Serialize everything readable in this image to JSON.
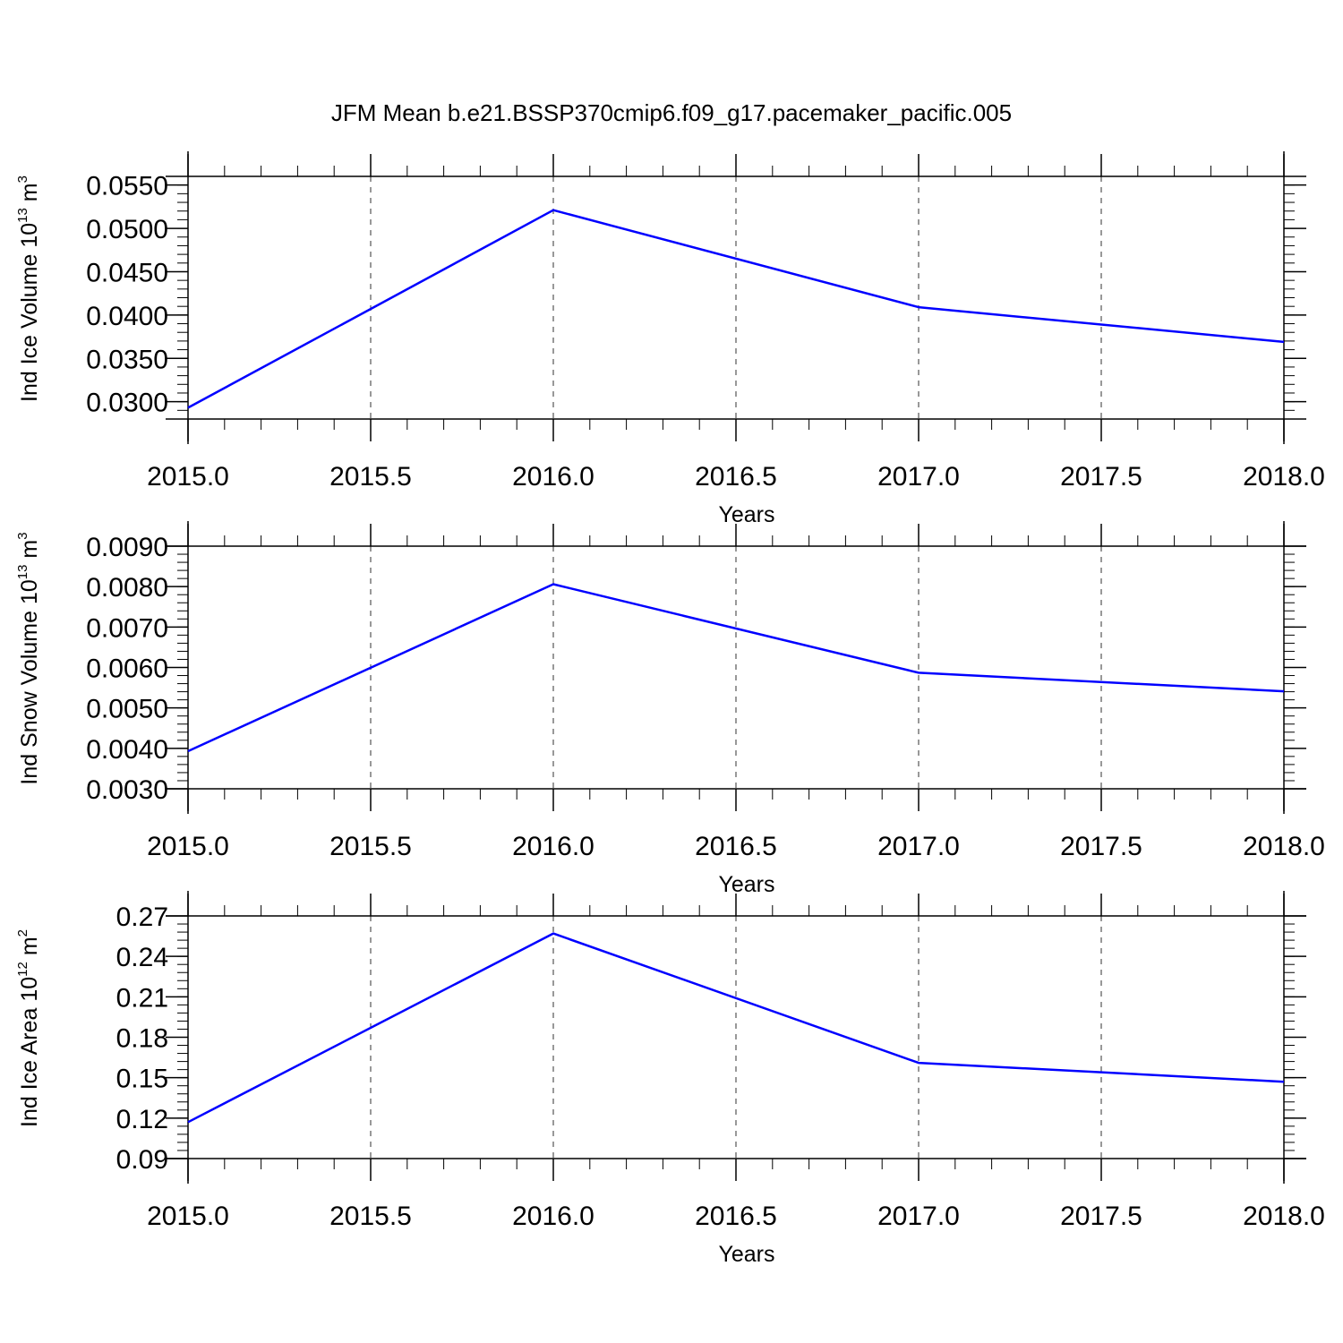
{
  "figure": {
    "title": "JFM Mean b.e21.BSSP370cmip6.f09_g17.pacemaker_pacific.005"
  },
  "colors": {
    "line": "#0000ff",
    "axes": "#000000",
    "grid": "#555555"
  },
  "chart_data": [
    {
      "type": "line",
      "x": [
        2015,
        2016,
        2017,
        2018
      ],
      "values": [
        0.0293,
        0.0521,
        0.0409,
        0.0369
      ],
      "xlabel": "Years",
      "ylabel_main": "Ind Ice Volume 10",
      "ylabel_exp": "13",
      "ylabel_unit": " m",
      "ylabel_unit_exp": "3",
      "xlim": [
        2015,
        2018
      ],
      "ylim": [
        0.028,
        0.056
      ],
      "xticks": [
        2015.0,
        2015.5,
        2016.0,
        2016.5,
        2017.0,
        2017.5,
        2018.0
      ],
      "xtick_labels": [
        "2015.0",
        "2015.5",
        "2016.0",
        "2016.5",
        "2017.0",
        "2017.5",
        "2018.0"
      ],
      "yticks": [
        0.03,
        0.035,
        0.04,
        0.045,
        0.05,
        0.055
      ],
      "ytick_labels": [
        "0.0300",
        "0.0350",
        "0.0400",
        "0.0450",
        "0.0500",
        "0.0550"
      ],
      "yminor_step": 0.001,
      "xminor_step": 0.1,
      "grid": "vertical-dashed"
    },
    {
      "type": "line",
      "x": [
        2015,
        2016,
        2017,
        2018
      ],
      "values": [
        0.00393,
        0.00806,
        0.00587,
        0.00541
      ],
      "xlabel": "Years",
      "ylabel_main": "Ind Snow Volume 10",
      "ylabel_exp": "13",
      "ylabel_unit": " m",
      "ylabel_unit_exp": "3",
      "xlim": [
        2015,
        2018
      ],
      "ylim": [
        0.003,
        0.009
      ],
      "xticks": [
        2015.0,
        2015.5,
        2016.0,
        2016.5,
        2017.0,
        2017.5,
        2018.0
      ],
      "xtick_labels": [
        "2015.0",
        "2015.5",
        "2016.0",
        "2016.5",
        "2017.0",
        "2017.5",
        "2018.0"
      ],
      "yticks": [
        0.003,
        0.004,
        0.005,
        0.006,
        0.007,
        0.008,
        0.009
      ],
      "ytick_labels": [
        "0.0030",
        "0.0040",
        "0.0050",
        "0.0060",
        "0.0070",
        "0.0080",
        "0.0090"
      ],
      "yminor_step": 0.0002,
      "xminor_step": 0.1,
      "grid": "vertical-dashed"
    },
    {
      "type": "line",
      "x": [
        2015,
        2016,
        2017,
        2018
      ],
      "values": [
        0.117,
        0.257,
        0.161,
        0.147
      ],
      "xlabel": "Years",
      "ylabel_main": "Ind Ice Area 10",
      "ylabel_exp": "12",
      "ylabel_unit": " m",
      "ylabel_unit_exp": "2",
      "xlim": [
        2015,
        2018
      ],
      "ylim": [
        0.09,
        0.27
      ],
      "xticks": [
        2015.0,
        2015.5,
        2016.0,
        2016.5,
        2017.0,
        2017.5,
        2018.0
      ],
      "xtick_labels": [
        "2015.0",
        "2015.5",
        "2016.0",
        "2016.5",
        "2017.0",
        "2017.5",
        "2018.0"
      ],
      "yticks": [
        0.09,
        0.12,
        0.15,
        0.18,
        0.21,
        0.24,
        0.27
      ],
      "ytick_labels": [
        "0.09",
        "0.12",
        "0.15",
        "0.18",
        "0.21",
        "0.24",
        "0.27"
      ],
      "yminor_step": 0.006,
      "xminor_step": 0.1,
      "grid": "vertical-dashed"
    }
  ]
}
